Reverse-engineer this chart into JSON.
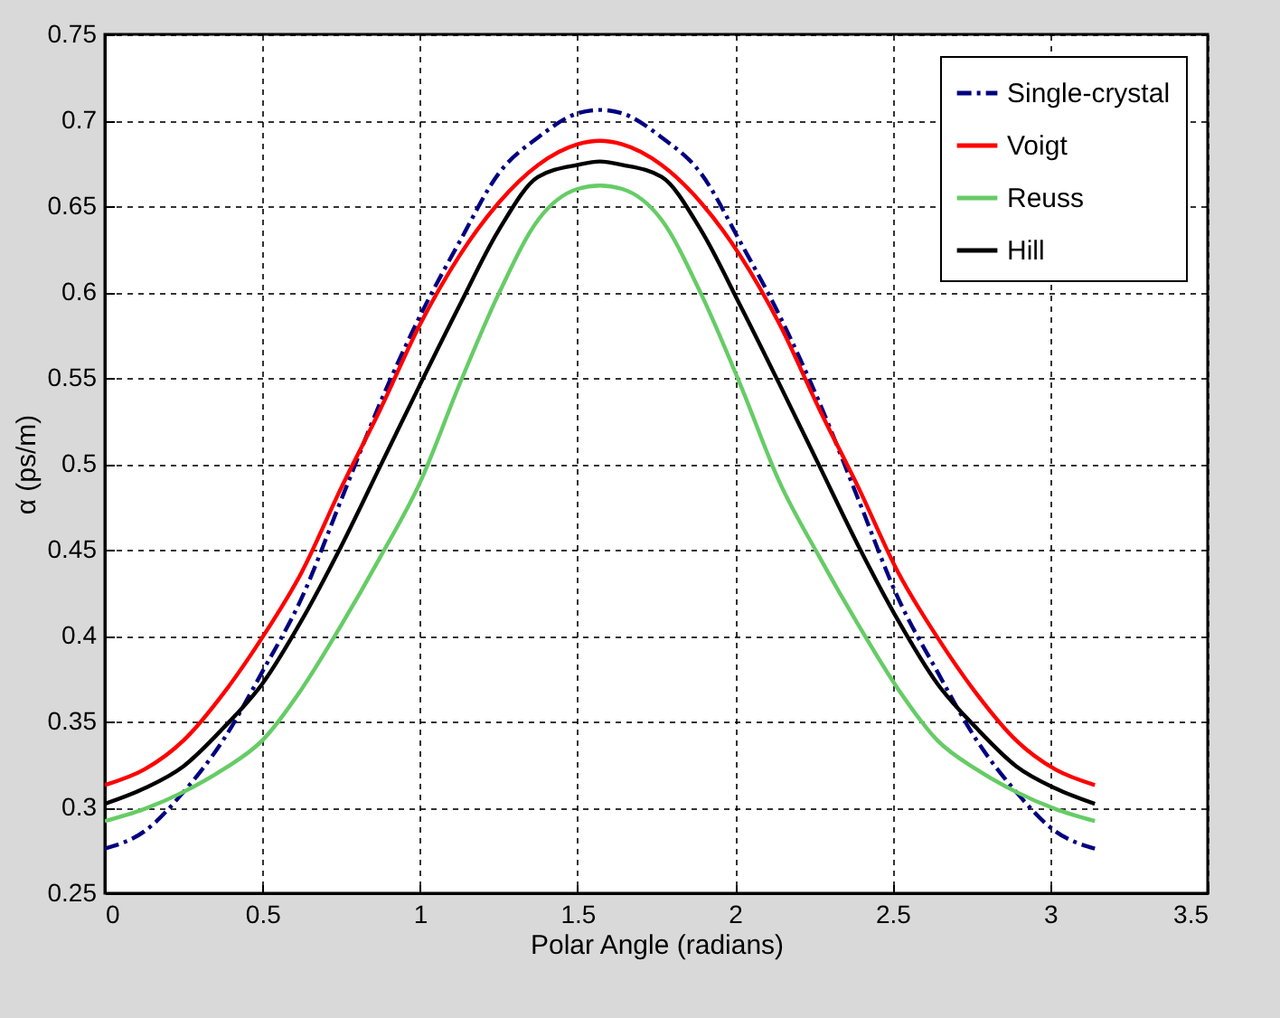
{
  "chart_data": {
    "type": "line",
    "xlabel": "Polar Angle (radians)",
    "ylabel": "α (ps/m)",
    "x": [
      0,
      0.125,
      0.25,
      0.375,
      0.5,
      0.625,
      0.75,
      0.875,
      1,
      1.125,
      1.25,
      1.375,
      1.5,
      1.571,
      1.642,
      1.767,
      1.892,
      2.017,
      2.142,
      2.267,
      2.392,
      2.517,
      2.642,
      2.767,
      2.892,
      3.017,
      3.142
    ],
    "series": [
      {
        "name": "Single-crystal",
        "color": "#000080",
        "line_style": "dashed",
        "values": [
          0.276,
          0.286,
          0.309,
          0.339,
          0.379,
          0.422,
          0.479,
          0.536,
          0.586,
          0.629,
          0.669,
          0.69,
          0.704,
          0.706,
          0.704,
          0.69,
          0.669,
          0.629,
          0.586,
          0.536,
          0.479,
          0.422,
          0.379,
          0.339,
          0.309,
          0.286,
          0.276
        ]
      },
      {
        "name": "Voigt",
        "color": "#ff0000",
        "line_style": "solid",
        "values": [
          0.313,
          0.322,
          0.339,
          0.366,
          0.399,
          0.437,
          0.486,
          0.532,
          0.581,
          0.621,
          0.652,
          0.674,
          0.686,
          0.688,
          0.686,
          0.674,
          0.652,
          0.621,
          0.581,
          0.532,
          0.486,
          0.437,
          0.399,
          0.366,
          0.339,
          0.322,
          0.313
        ]
      },
      {
        "name": "Reuss",
        "color": "#66cc66",
        "line_style": "solid",
        "values": [
          0.292,
          0.299,
          0.309,
          0.322,
          0.339,
          0.369,
          0.406,
          0.446,
          0.489,
          0.546,
          0.599,
          0.642,
          0.66,
          0.662,
          0.66,
          0.642,
          0.599,
          0.546,
          0.489,
          0.446,
          0.406,
          0.369,
          0.339,
          0.322,
          0.309,
          0.299,
          0.292
        ]
      },
      {
        "name": "Hill",
        "color": "#000000",
        "line_style": "solid",
        "values": [
          0.302,
          0.311,
          0.324,
          0.346,
          0.372,
          0.409,
          0.452,
          0.499,
          0.546,
          0.592,
          0.636,
          0.667,
          0.674,
          0.676,
          0.674,
          0.667,
          0.636,
          0.592,
          0.546,
          0.499,
          0.452,
          0.409,
          0.372,
          0.346,
          0.324,
          0.311,
          0.302
        ]
      }
    ],
    "xlim": [
      0,
      3.5
    ],
    "xticks": [
      0,
      0.5,
      1,
      1.5,
      2,
      2.5,
      3,
      3.5
    ],
    "ylim": [
      0.25,
      0.75
    ],
    "yticks": [
      0.25,
      0.3,
      0.35,
      0.4,
      0.45,
      0.5,
      0.55,
      0.6,
      0.65,
      0.7,
      0.75
    ],
    "grid": true,
    "legend": "top right"
  }
}
